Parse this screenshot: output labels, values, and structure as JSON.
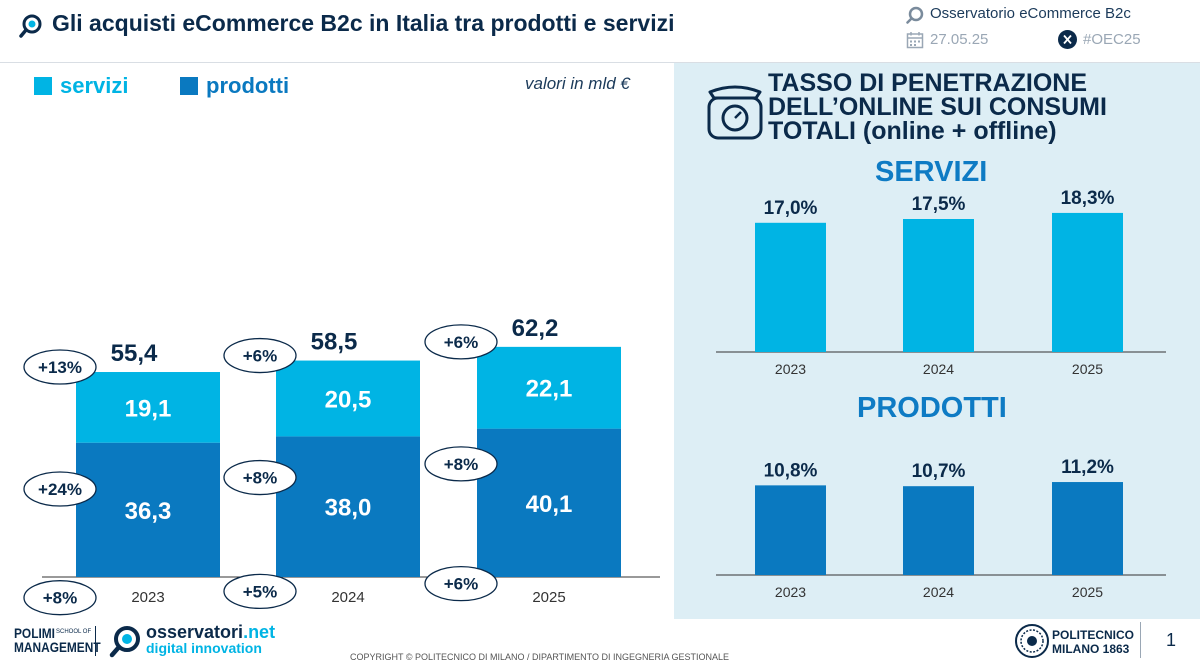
{
  "header": {
    "title": "Gli acquisti eCommerce B2c in Italia tra prodotti e servizi",
    "source": "Osservatorio eCommerce B2c",
    "date": "27.05.25",
    "hashtag": "#OEC25",
    "icons": [
      "search-icon",
      "calendar-icon",
      "x-logo-icon"
    ]
  },
  "legend": {
    "servizi": "servizi",
    "prodotti": "prodotti",
    "unit": "valori in mld €"
  },
  "colors": {
    "servizi": "#00b4e4",
    "prodotti": "#0a79c0",
    "panel": "#ddeef5",
    "dark": "#0b2a4a"
  },
  "chart_data": [
    {
      "type": "bar",
      "stacked": true,
      "categories": [
        "2023",
        "2024",
        "2025"
      ],
      "series": [
        {
          "name": "prodotti",
          "values": [
            36.3,
            38.0,
            40.1
          ],
          "labels": [
            "36,3",
            "38,0",
            "40,1"
          ],
          "growth": [
            "+8%",
            "+5%",
            "+6%"
          ]
        },
        {
          "name": "servizi",
          "values": [
            19.1,
            20.5,
            22.1
          ],
          "labels": [
            "19,1",
            "20,5",
            "22,1"
          ],
          "growth": [
            "+24%",
            "+8%",
            "+8%"
          ]
        }
      ],
      "totals": {
        "values": [
          55.4,
          58.5,
          62.2
        ],
        "labels": [
          "55,4",
          "58,5",
          "62,2"
        ],
        "growth": [
          "+13%",
          "+6%",
          "+6%"
        ]
      },
      "ylim": [
        0,
        62.2
      ],
      "legend_position": "top-left",
      "grid": false
    },
    {
      "type": "bar",
      "title": "SERVIZI",
      "categories": [
        "2023",
        "2024",
        "2025"
      ],
      "values": [
        17.0,
        17.5,
        18.3
      ],
      "labels": [
        "17,0%",
        "17,5%",
        "18,3%"
      ],
      "ylim": [
        0,
        18.3
      ],
      "grid": false
    },
    {
      "type": "bar",
      "title": "PRODOTTI",
      "categories": [
        "2023",
        "2024",
        "2025"
      ],
      "values": [
        10.8,
        10.7,
        11.2
      ],
      "labels": [
        "10,8%",
        "10,7%",
        "11,2%"
      ],
      "ylim": [
        0,
        11.2
      ],
      "grid": false
    }
  ],
  "penetration": {
    "title_lines": [
      "TASSO DI PENETRAZIONE",
      "DELL’ONLINE SUI CONSUMI",
      "TOTALI (online + offline)"
    ],
    "icon": "scale-icon"
  },
  "footer": {
    "polimi_line1": "POLIMI",
    "polimi_line2": "MANAGEMENT",
    "school_line1": "SCHOOL OF",
    "obs_brand_1": "osservatori",
    "obs_brand_2": ".net",
    "obs_tagline": "digital innovation",
    "politecnico_1": "POLITECNICO",
    "politecnico_2": "MILANO 1863",
    "copyright": "COPYRIGHT © POLITECNICO DI MILANO / DIPARTIMENTO DI INGEGNERIA GESTIONALE",
    "page_number": "1"
  }
}
